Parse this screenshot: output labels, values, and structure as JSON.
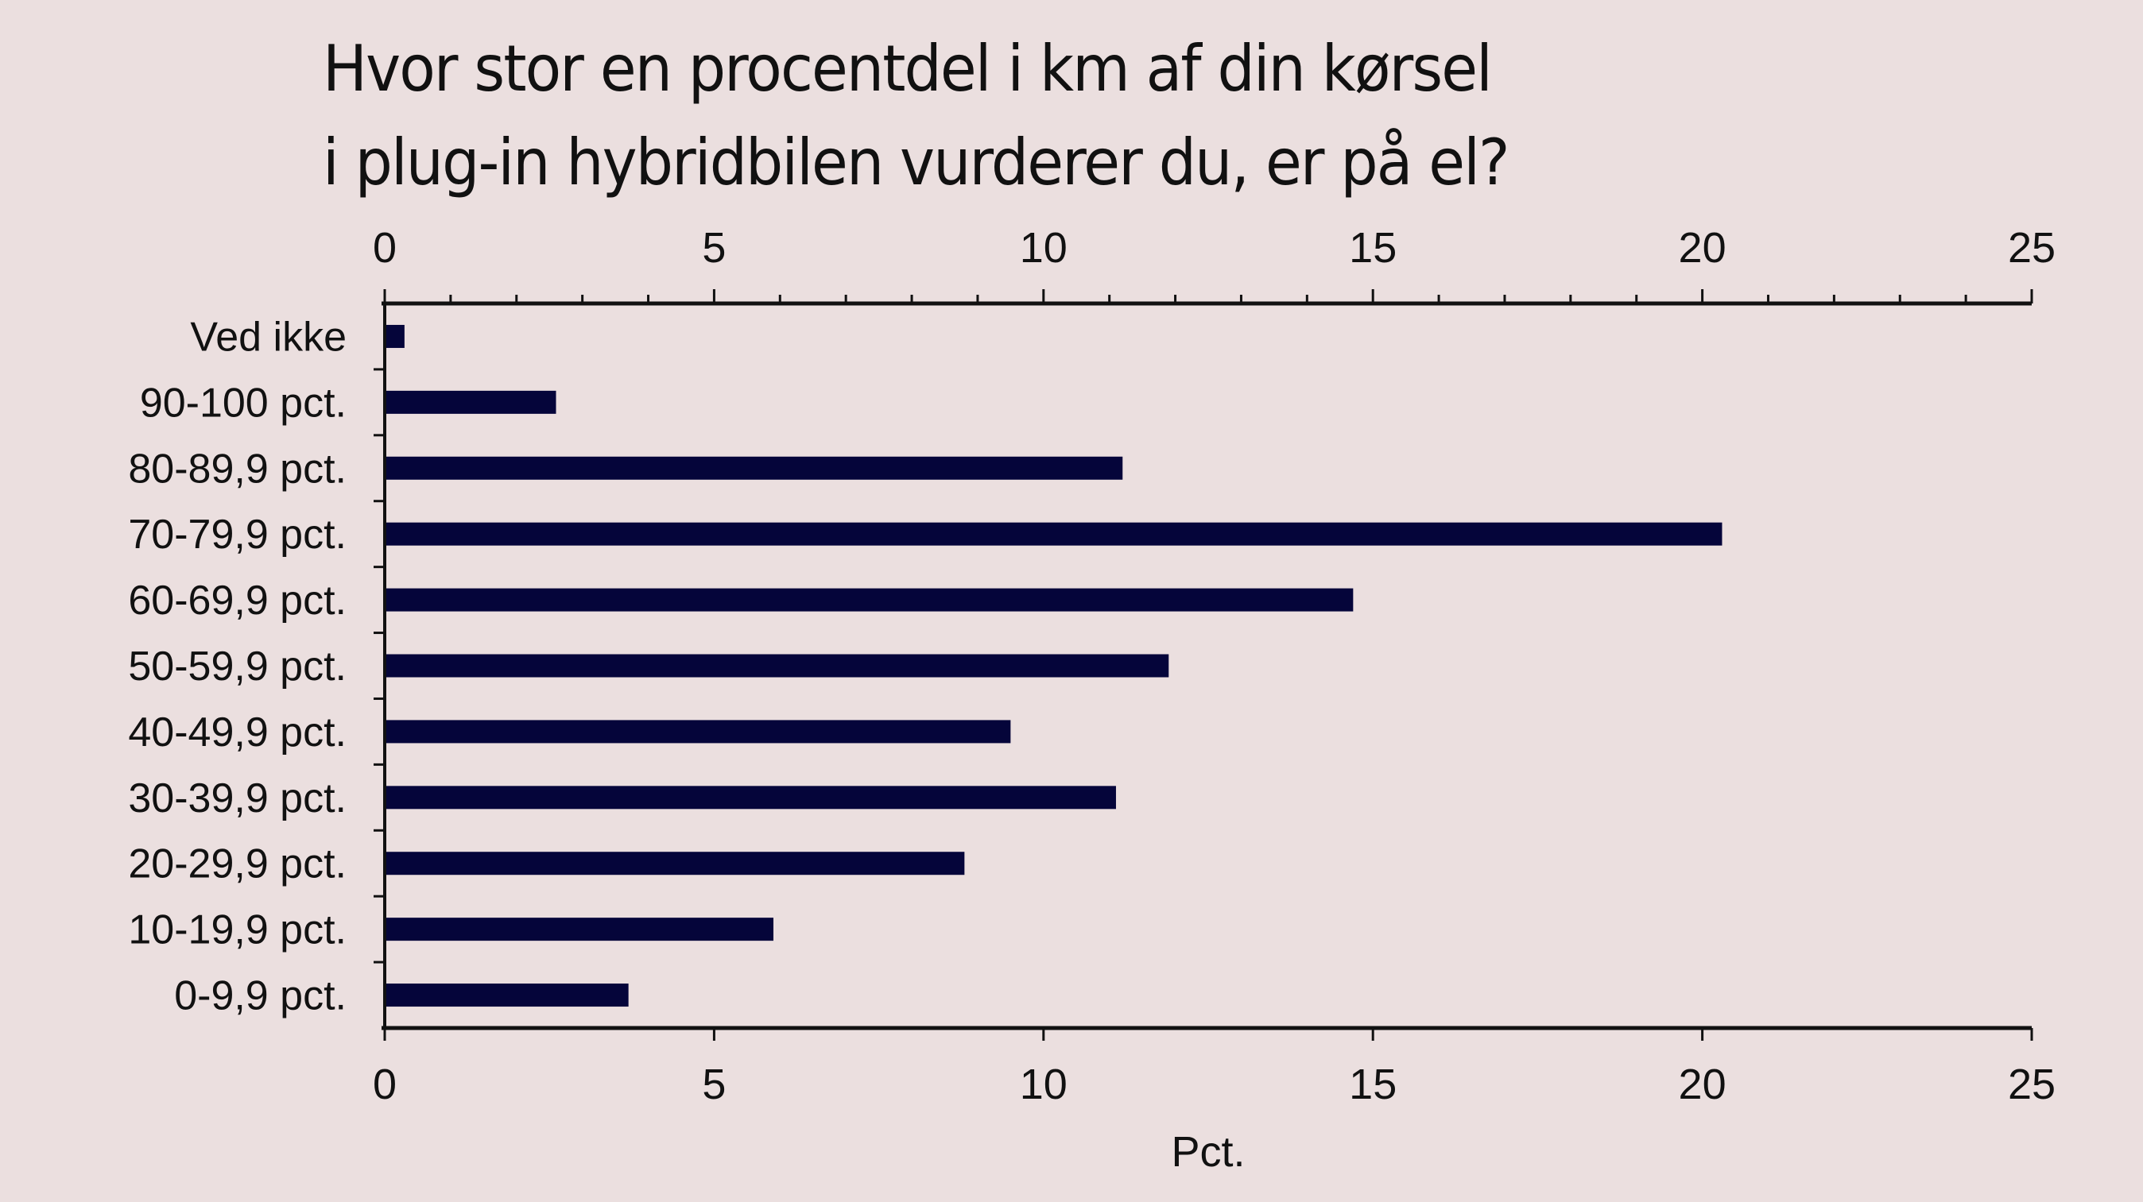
{
  "title": {
    "line1": "Hvor stor en procentdel i km af din kørsel",
    "line2": "i plug-in hybridbilen vurderer du, er på el?"
  },
  "colors": {
    "background": "#ebdfdf",
    "bar": "#05053a",
    "axis": "#111111"
  },
  "chart_data": {
    "type": "bar",
    "orientation": "horizontal",
    "title": "Hvor stor en procentdel i km af din kørsel i plug-in hybridbilen vurderer du, er på el?",
    "xlabel": "Pct.",
    "ylabel": "",
    "xlim": [
      0,
      25
    ],
    "x_ticks": [
      0,
      5,
      10,
      15,
      20,
      25
    ],
    "x_minor_step": 1,
    "x_axis_position": "top and bottom",
    "grid": false,
    "legend": null,
    "categories": [
      "Ved ikke",
      "90-100 pct.",
      "80-89,9 pct.",
      "70-79,9 pct.",
      "60-69,9 pct.",
      "50-59,9 pct.",
      "40-49,9 pct.",
      "30-39,9 pct.",
      "20-29,9 pct.",
      "10-19,9 pct.",
      "0-9,9 pct."
    ],
    "values": [
      0.3,
      2.6,
      11.2,
      20.3,
      14.7,
      11.9,
      9.5,
      11.1,
      8.8,
      5.9,
      3.7
    ]
  }
}
